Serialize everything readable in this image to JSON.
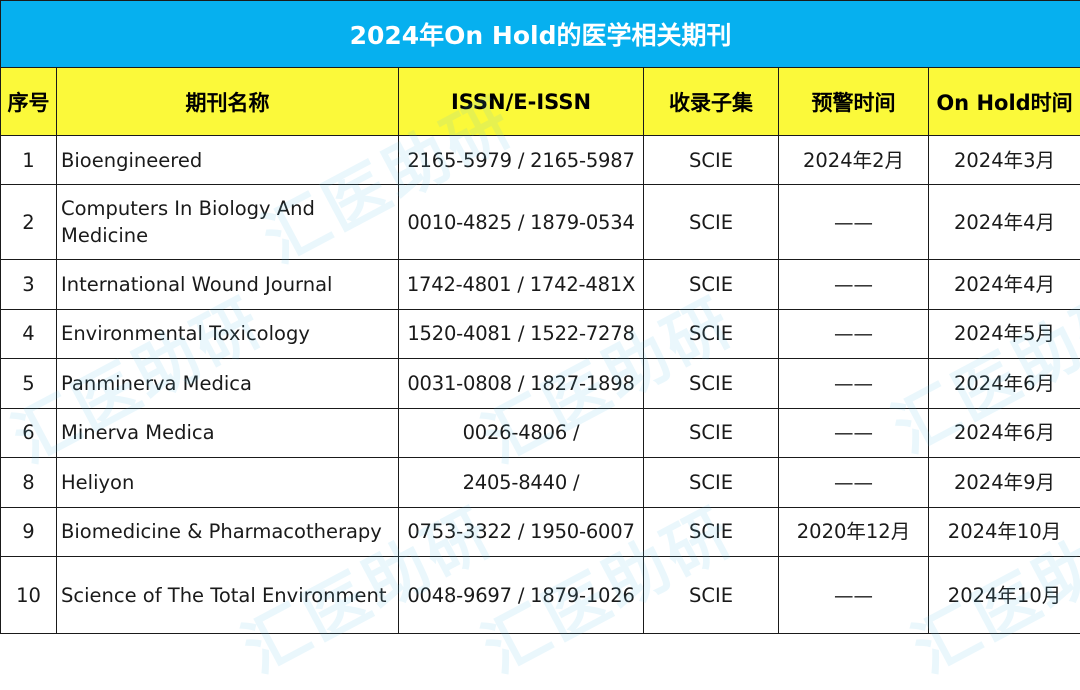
{
  "title": "2024年On Hold的医学相关期刊",
  "headers": [
    "序号",
    "期刊名称",
    "ISSN/E-ISSN",
    "收录子集",
    "预警时间",
    "On Hold时间"
  ],
  "watermark": "汇医助研",
  "colors": {
    "title_bg": "#06b0ef",
    "header_bg": "#fbf93a",
    "border": "#1a1a1a"
  },
  "rows": [
    {
      "no": "1",
      "name": "Bioengineered",
      "issn": "2165-5979 / 2165-5987",
      "subset": "SCIE",
      "warning": "2024年2月",
      "onhold": "2024年3月"
    },
    {
      "no": "2",
      "name": "Computers In Biology And Medicine",
      "issn": "0010-4825 / 1879-0534",
      "subset": "SCIE",
      "warning": "——",
      "onhold": "2024年4月"
    },
    {
      "no": "3",
      "name": "International Wound Journal",
      "issn": "1742-4801 / 1742-481X",
      "subset": "SCIE",
      "warning": "——",
      "onhold": "2024年4月"
    },
    {
      "no": "4",
      "name": "Environmental Toxicology",
      "issn": "1520-4081 / 1522-7278",
      "subset": "SCIE",
      "warning": "——",
      "onhold": "2024年5月"
    },
    {
      "no": "5",
      "name": "Panminerva Medica",
      "issn": "0031-0808 / 1827-1898",
      "subset": "SCIE",
      "warning": "——",
      "onhold": "2024年6月"
    },
    {
      "no": "6",
      "name": "Minerva Medica",
      "issn": "0026-4806 /",
      "subset": "SCIE",
      "warning": "——",
      "onhold": "2024年6月"
    },
    {
      "no": "8",
      "name": "Heliyon",
      "issn": "2405-8440 /",
      "subset": "SCIE",
      "warning": "——",
      "onhold": "2024年9月"
    },
    {
      "no": "9",
      "name": "Biomedicine & Pharmacotherapy",
      "issn": "0753-3322 / 1950-6007",
      "subset": "SCIE",
      "warning": "2020年12月",
      "onhold": "2024年10月"
    },
    {
      "no": "10",
      "name": "Science of The Total Environment",
      "issn": "0048-9697 / 1879-1026",
      "subset": "SCIE",
      "warning": "——",
      "onhold": "2024年10月"
    }
  ]
}
